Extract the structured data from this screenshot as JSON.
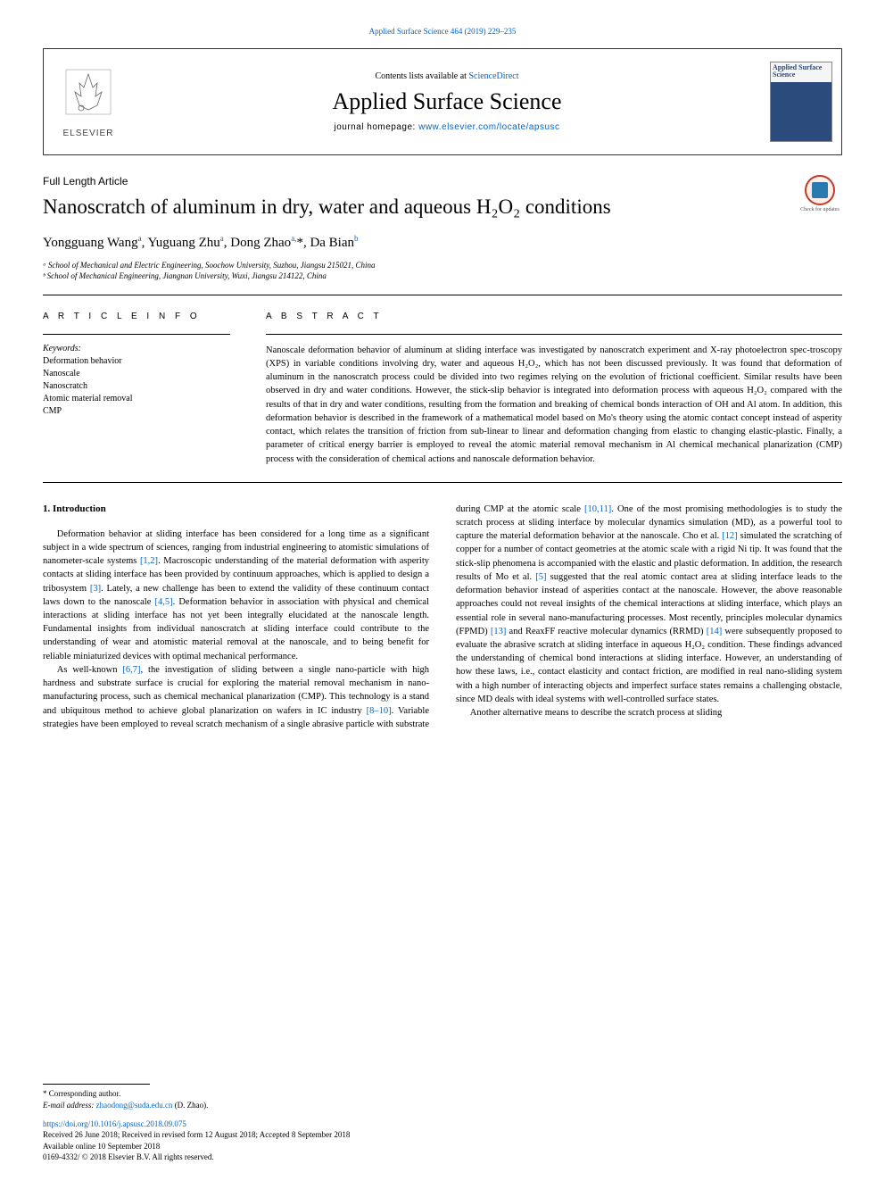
{
  "top_citation": "Applied Surface Science 464 (2019) 229–235",
  "header": {
    "contents_prefix": "Contents lists available at ",
    "contents_link": "ScienceDirect",
    "journal_title": "Applied Surface Science",
    "homepage_prefix": "journal homepage: ",
    "homepage_url": "www.elsevier.com/locate/apsusc",
    "publisher_name": "ELSEVIER",
    "cover_title": "Applied Surface Science"
  },
  "article_type": "Full Length Article",
  "check_updates_label": "Check for updates",
  "title": "Nanoscratch of aluminum in dry, water and aqueous H₂O₂ conditions",
  "authors_html": "Yongguang Wang<sup class='sup'>a</sup>, Yuguang Zhu<sup class='sup'>a</sup>, Dong Zhao<sup class='sup'>a,</sup>*, Da Bian<sup class='sup'>b</sup>",
  "affiliations": [
    "ᵃ School of Mechanical and Electric Engineering, Soochow University, Suzhou, Jiangsu 215021, China",
    "ᵇ School of Mechanical Engineering, Jiangnan University, Wuxi, Jiangsu 214122, China"
  ],
  "article_info": {
    "heading": "A R T I C L E  I N F O",
    "keywords_label": "Keywords:",
    "keywords": [
      "Deformation behavior",
      "Nanoscale",
      "Nanoscratch",
      "Atomic material removal",
      "CMP"
    ]
  },
  "abstract": {
    "heading": "A B S T R A C T",
    "text": "Nanoscale deformation behavior of aluminum at sliding interface was investigated by nanoscratch experiment and X-ray photoelectron spec-troscopy (XPS) in variable conditions involving dry, water and aqueous H₂O₂, which has not been discussed previously. It was found that deformation of aluminum in the nanoscratch process could be divided into two regimes relying on the evolution of frictional coefficient. Similar results have been observed in dry and water conditions. However, the stick-slip behavior is integrated into deformation process with aqueous H₂O₂ compared with the results of that in dry and water conditions, resulting from the formation and breaking of chemical bonds interaction of OH and Al atom. In addition, this deformation behavior is described in the framework of a mathematical model based on Mo's theory using the atomic contact concept instead of asperity contact, which relates the transition of friction from sub-linear to linear and deformation changing from elastic to changing elastic-plastic. Finally, a parameter of critical energy barrier is employed to reveal the atomic material removal mechanism in Al chemical mechanical planarization (CMP) process with the consideration of chemical actions and nanoscale deformation behavior."
  },
  "intro": {
    "heading": "1. Introduction",
    "p1_pre": "Deformation behavior at sliding interface has been considered for a long time as a significant subject in a wide spectrum of sciences, ranging from industrial engineering to atomistic simulations of nanometer-scale systems ",
    "ref12": "[1,2]",
    "p1_mid1": ". Macroscopic understanding of the material deformation with asperity contacts at sliding interface has been provided by continuum approaches, which is applied to design a tribosystem ",
    "ref3": "[3]",
    "p1_mid2": ". Lately, a new challenge has been to extend the validity of these continuum contact laws down to the nanoscale ",
    "ref45": "[4,5]",
    "p1_post": ". Deformation behavior in association with physical and chemical interactions at sliding interface has not yet been integrally elucidated at the nanoscale length. Fundamental insights from individual nanoscratch at sliding interface could contribute to the understanding of wear and atomistic material removal at the nanoscale, and to being benefit for reliable miniaturized devices with optimal mechanical performance.",
    "p2_pre": "As well-known ",
    "ref67": "[6,7]",
    "p2_mid1": ", the investigation of sliding between a single nano-particle with high hardness and substrate surface is crucial for exploring the material removal mechanism in nano-manufacturing process, such as chemical mechanical planarization (CMP). This technology is a stand and ubiquitous method to achieve global planarization on wafers in IC industry ",
    "ref810": "[8–10]",
    "p2_mid2": ". Variable strategies have been employed to reveal scratch mechanism of a single abrasive particle with substrate during CMP at the atomic scale ",
    "ref1011": "[10,11]",
    "p2_mid3": ". One of the most promising methodologies is to study the scratch process at sliding interface by molecular dynamics simulation (MD), as a powerful tool to capture the material deformation behavior at the nanoscale. Cho et al. ",
    "ref12b": "[12]",
    "p2_mid4": " simulated the scratching of copper for a number of contact geometries at the atomic scale with a rigid Ni tip. It was found that the stick-slip phenomena is accompanied with the elastic and plastic deformation. In addition, the research results of Mo et al. ",
    "ref5b": "[5]",
    "p2_mid5": " suggested that the real atomic contact area at sliding interface leads to the deformation behavior instead of asperities contact at the nanoscale. However, the above reasonable approaches could not reveal insights of the chemical interactions at sliding interface, which plays an essential role in several nano-manufacturing processes. Most recently, principles molecular dynamics (FPMD) ",
    "ref13": "[13]",
    "p2_mid6": " and ReaxFF reactive molecular dynamics (RRMD) ",
    "ref14": "[14]",
    "p2_post": " were subsequently proposed to evaluate the abrasive scratch at sliding interface in aqueous H₂O₂ condition. These findings advanced the understanding of chemical bond interactions at sliding interface. However, an understanding of how these laws, i.e., contact elasticity and contact friction, are modified in real nano-sliding system with a high number of interacting objects and imperfect surface states remains a challenging obstacle, since MD deals with ideal systems with well-controlled surface states.",
    "p3": "Another alternative means to describe the scratch process at sliding"
  },
  "footer": {
    "corresponding": "* Corresponding author.",
    "email_label": "E-mail address: ",
    "email": "zhaodong@suda.edu.cn",
    "email_name": " (D. Zhao).",
    "doi": "https://doi.org/10.1016/j.apsusc.2018.09.075",
    "dates": "Received 26 June 2018; Received in revised form 12 August 2018; Accepted 8 September 2018",
    "online": "Available online 10 September 2018",
    "copyright": "0169-4332/ © 2018 Elsevier B.V. All rights reserved."
  },
  "colors": {
    "link": "#0563c1",
    "text": "#000000",
    "accent_red": "#c0392b",
    "cover_blue": "#2a4b7c"
  }
}
